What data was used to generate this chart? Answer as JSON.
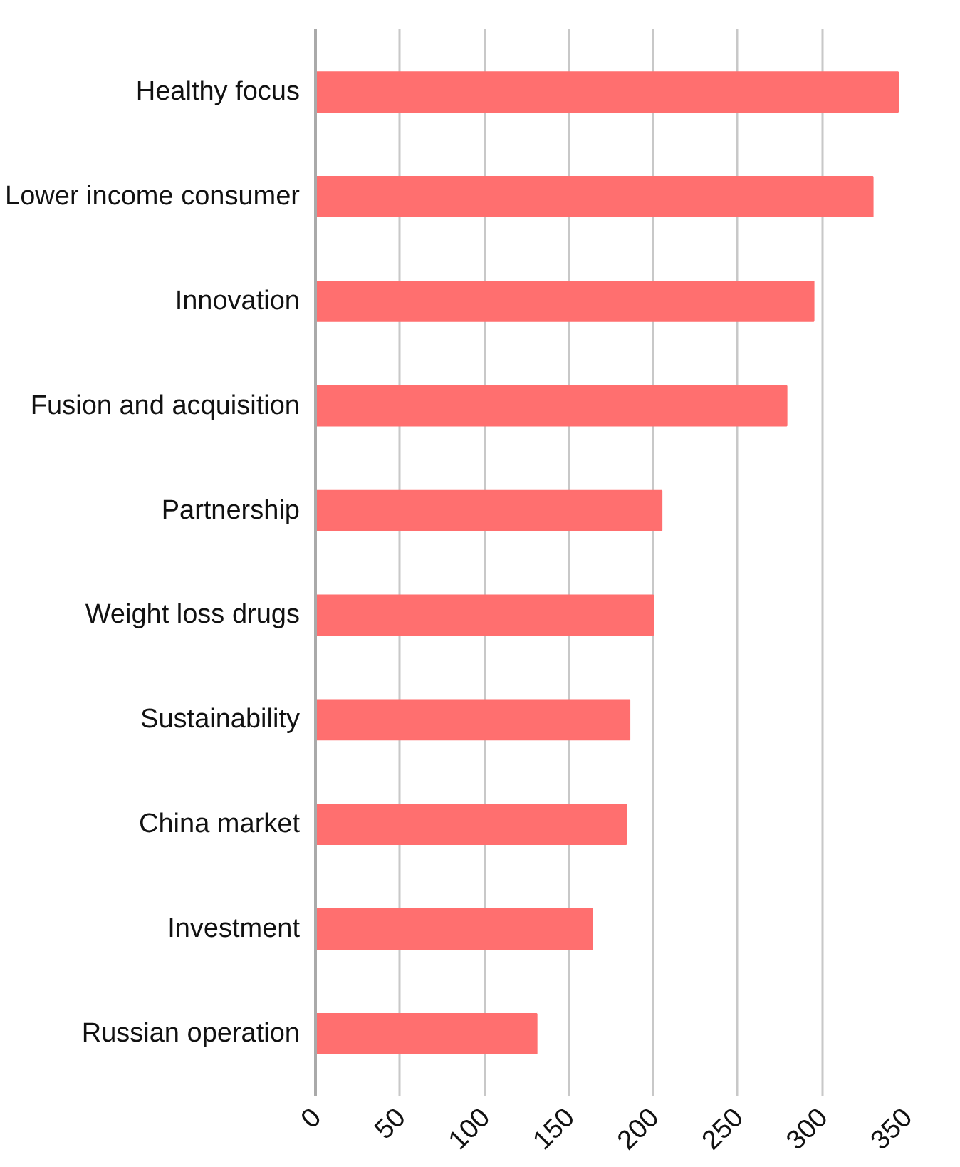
{
  "chart_data": {
    "type": "bar",
    "orientation": "horizontal",
    "categories": [
      "Healthy focus",
      "Lower income consumer",
      "Innovation",
      "Fusion and acquisition",
      "Partnership",
      "Weight loss drugs",
      "Sustainability",
      "China market",
      "Investment",
      "Russian operation"
    ],
    "values": [
      345,
      330,
      295,
      279,
      205,
      200,
      186,
      184,
      164,
      131
    ],
    "color": "#ff6f6f",
    "xlim": [
      0,
      350
    ],
    "xticks": [
      0,
      50,
      100,
      150,
      200,
      250,
      300,
      350
    ],
    "grid": "x"
  }
}
